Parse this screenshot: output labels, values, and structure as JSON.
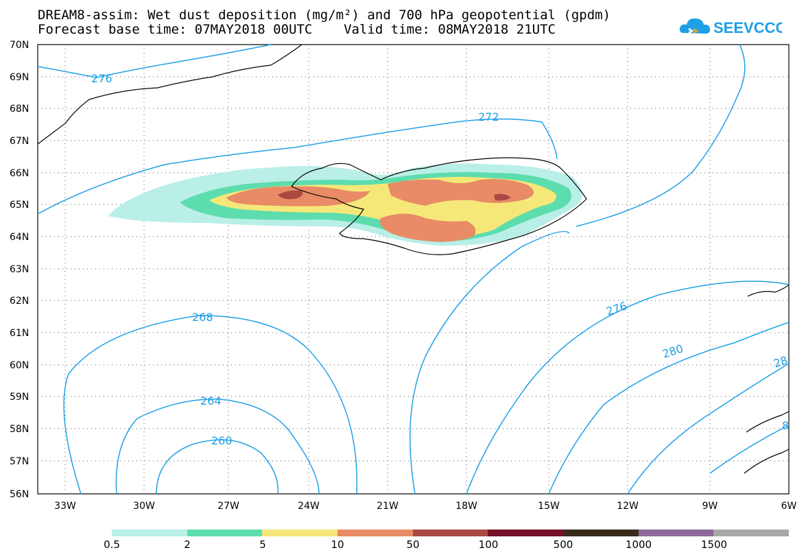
{
  "title": {
    "line1": "DREAM8-assim: Wet dust deposition (mg/m²) and 700 hPa geopotential (gpdm)",
    "line2": "Forecast base time: 07MAY2018 00UTC    Valid time: 08MAY2018 21UTC"
  },
  "logo": {
    "text": "SEEVCCC",
    "icon": "cloud-icon"
  },
  "axes": {
    "lat_labels": [
      "70N",
      "69N",
      "68N",
      "67N",
      "66N",
      "65N",
      "64N",
      "63N",
      "62N",
      "61N",
      "60N",
      "59N",
      "58N",
      "57N",
      "56N"
    ],
    "lon_labels": [
      "33W",
      "30W",
      "27W",
      "24W",
      "21W",
      "18W",
      "15W",
      "12W",
      "9W",
      "6W"
    ]
  },
  "contour_labels": [
    "276",
    "272",
    "268",
    "264",
    "260",
    "276",
    "280",
    "28",
    "8"
  ],
  "legend": {
    "colors": [
      "#b9efe7",
      "#5ddcae",
      "#f6e878",
      "#e88b66",
      "#a84a42",
      "#78102a",
      "#3a2a1c",
      "#8f6a9a",
      "#a8a8a8"
    ],
    "labels": [
      "0.5",
      "2",
      "5",
      "10",
      "50",
      "100",
      "500",
      "1000",
      "1500"
    ]
  }
}
